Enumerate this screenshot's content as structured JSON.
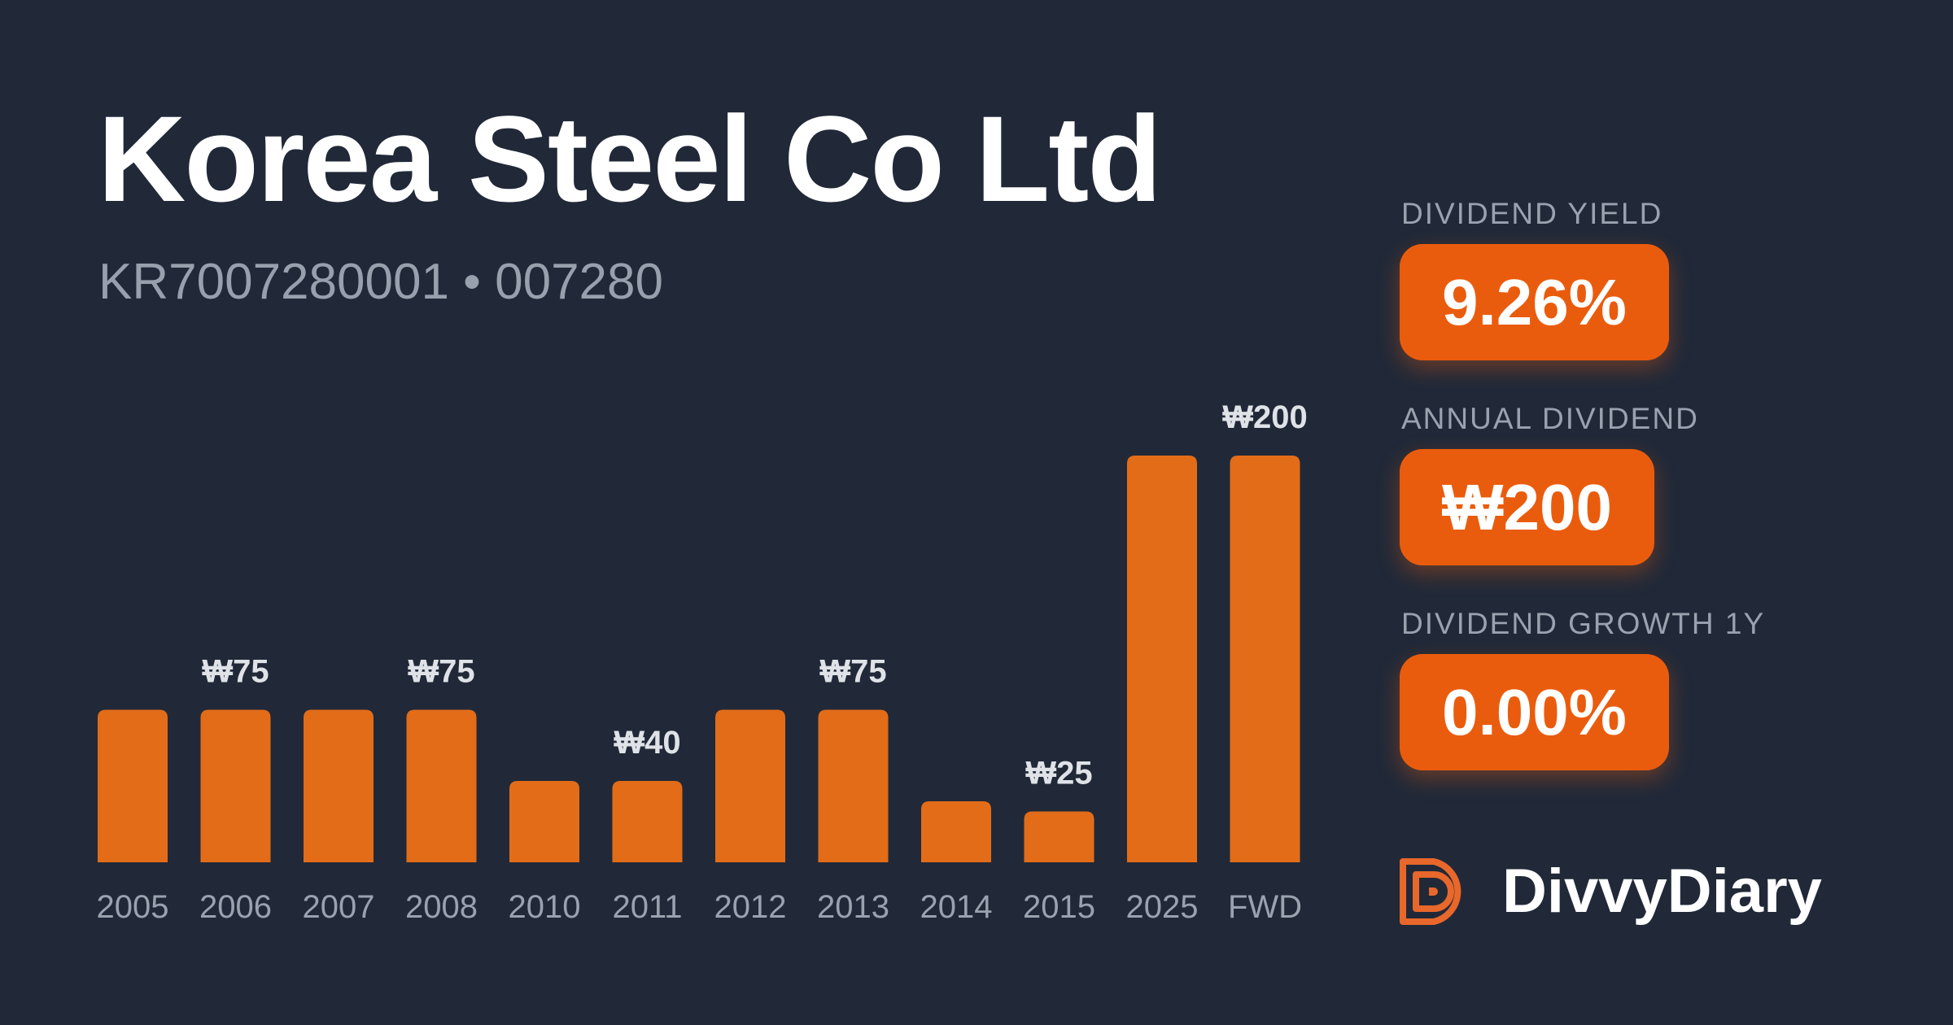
{
  "header": {
    "title": "Korea Steel Co Ltd",
    "subtitle": "KR7007280001 • 007280"
  },
  "stats": {
    "yield_label": "DIVIDEND YIELD",
    "yield_value": "9.26%",
    "annual_label": "ANNUAL DIVIDEND",
    "annual_value": "₩200",
    "growth_label": "DIVIDEND GROWTH 1Y",
    "growth_value": "0.00%"
  },
  "brand": {
    "name": "DivvyDiary",
    "logo_icon": "divvydiary-logo-icon"
  },
  "colors": {
    "background": "#212938",
    "bar": "#e36c18",
    "accent": "#ea5c0d",
    "tick_text": "#9aa2af",
    "label_text": "#dfe3e8"
  },
  "chart_data": {
    "type": "bar",
    "categories": [
      "2005",
      "2006",
      "2007",
      "2008",
      "2010",
      "2011",
      "2012",
      "2013",
      "2014",
      "2015",
      "2025",
      "FWD"
    ],
    "values": [
      75,
      75,
      75,
      75,
      40,
      40,
      75,
      75,
      30,
      25,
      200,
      200
    ],
    "data_labels": [
      "",
      "₩75",
      "",
      "₩75",
      "",
      "₩40",
      "",
      "₩75",
      "",
      "₩25",
      "",
      "₩200"
    ],
    "title": "",
    "xlabel": "",
    "ylabel": "",
    "ylim": [
      0,
      200
    ],
    "grid": false,
    "legend": false
  }
}
